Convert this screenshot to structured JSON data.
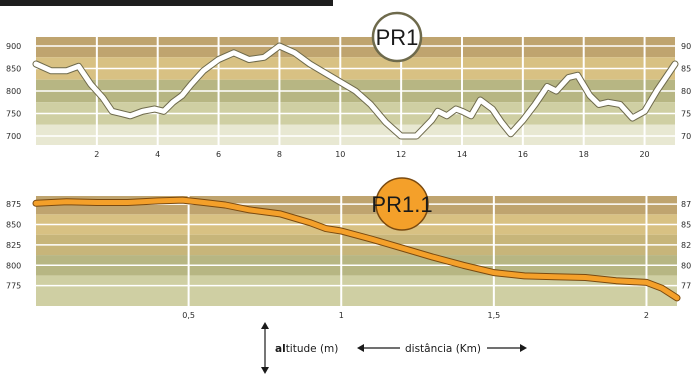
{
  "chart_data": [
    {
      "type": "line",
      "title": "PR1",
      "xlabel": "distância (Km)",
      "ylabel": "altitude (m)",
      "xlim": [
        0,
        21
      ],
      "ylim": [
        680,
        920
      ],
      "x_ticks": [
        "2",
        "4",
        "6",
        "8",
        "10",
        "12",
        "14",
        "16",
        "18",
        "20"
      ],
      "x_tick_values": [
        2,
        4,
        6,
        8,
        10,
        12,
        14,
        16,
        18,
        20
      ],
      "y_ticks_left": [
        "900",
        "850",
        "800",
        "750",
        "700"
      ],
      "y_ticks_right": [
        "90",
        "85",
        "80",
        "75",
        "70"
      ],
      "y_tick_values": [
        900,
        850,
        800,
        750,
        700
      ],
      "band_colors": [
        "#bfa46f",
        "#d8c183",
        "#b7b683",
        "#cfcfa3",
        "#e8e8d2"
      ],
      "line_color": "#ffffff",
      "line_outline": "#6e6a4c",
      "grid": true,
      "series": [
        {
          "x": [
            0,
            0.5,
            1,
            1.4,
            1.8,
            2.2,
            2.5,
            2.8,
            3.1,
            3.5,
            3.9,
            4.2,
            4.5,
            4.8,
            5.1,
            5.5,
            6,
            6.5,
            7,
            7.5,
            8,
            8.5,
            9,
            9.5,
            10,
            10.5,
            11,
            11.5,
            12,
            12.5,
            13,
            13.2,
            13.5,
            13.8,
            14,
            14.3,
            14.6,
            15,
            15.3,
            15.6,
            16,
            16.4,
            16.8,
            17.1,
            17.5,
            17.8,
            18.2,
            18.5,
            18.8,
            19.2,
            19.6,
            20,
            20.4,
            20.8,
            21
          ],
          "y": [
            860,
            845,
            845,
            855,
            815,
            785,
            755,
            750,
            745,
            755,
            760,
            755,
            775,
            790,
            815,
            845,
            870,
            885,
            870,
            875,
            900,
            885,
            860,
            840,
            820,
            800,
            770,
            730,
            700,
            700,
            735,
            755,
            745,
            760,
            755,
            745,
            780,
            760,
            730,
            705,
            735,
            770,
            810,
            800,
            830,
            835,
            790,
            770,
            775,
            770,
            740,
            755,
            800,
            840,
            860
          ]
        }
      ]
    },
    {
      "type": "line",
      "title": "PR1.1",
      "xlabel": "distância (Km)",
      "ylabel": "altitude (m)",
      "xlim": [
        0,
        2.1
      ],
      "ylim": [
        750,
        885
      ],
      "x_ticks": [
        "0,5",
        "1",
        "1,5",
        "2"
      ],
      "x_tick_values": [
        0.5,
        1,
        1.5,
        2
      ],
      "y_ticks_left": [
        "875",
        "850",
        "825",
        "800",
        "775"
      ],
      "y_ticks_right": [
        "87",
        "85",
        "82",
        "80",
        "77"
      ],
      "y_tick_values": [
        875,
        850,
        825,
        800,
        775
      ],
      "band_colors": [
        "#bfa46f",
        "#d8c183",
        "#c7b57a",
        "#b7b683",
        "#cfcfa3"
      ],
      "line_color": "#f4a02a",
      "line_outline": "#7a4a10",
      "grid": true,
      "series": [
        {
          "x": [
            0,
            0.1,
            0.2,
            0.3,
            0.4,
            0.48,
            0.55,
            0.62,
            0.7,
            0.8,
            0.9,
            0.95,
            1,
            1.1,
            1.2,
            1.3,
            1.4,
            1.5,
            1.6,
            1.7,
            1.8,
            1.9,
            2,
            2.05,
            2.1
          ],
          "y": [
            876,
            878,
            877,
            877,
            879,
            880,
            877,
            874,
            868,
            863,
            852,
            845,
            842,
            832,
            821,
            810,
            800,
            791,
            787,
            786,
            785,
            781,
            779,
            772,
            760
          ]
        }
      ]
    }
  ],
  "badges": {
    "pr1": "PR1",
    "pr11": "PR1.1"
  },
  "legend": {
    "altitude_prefix": "al",
    "altitude_rest": "titude (m)",
    "distance": "distância (Km)"
  }
}
